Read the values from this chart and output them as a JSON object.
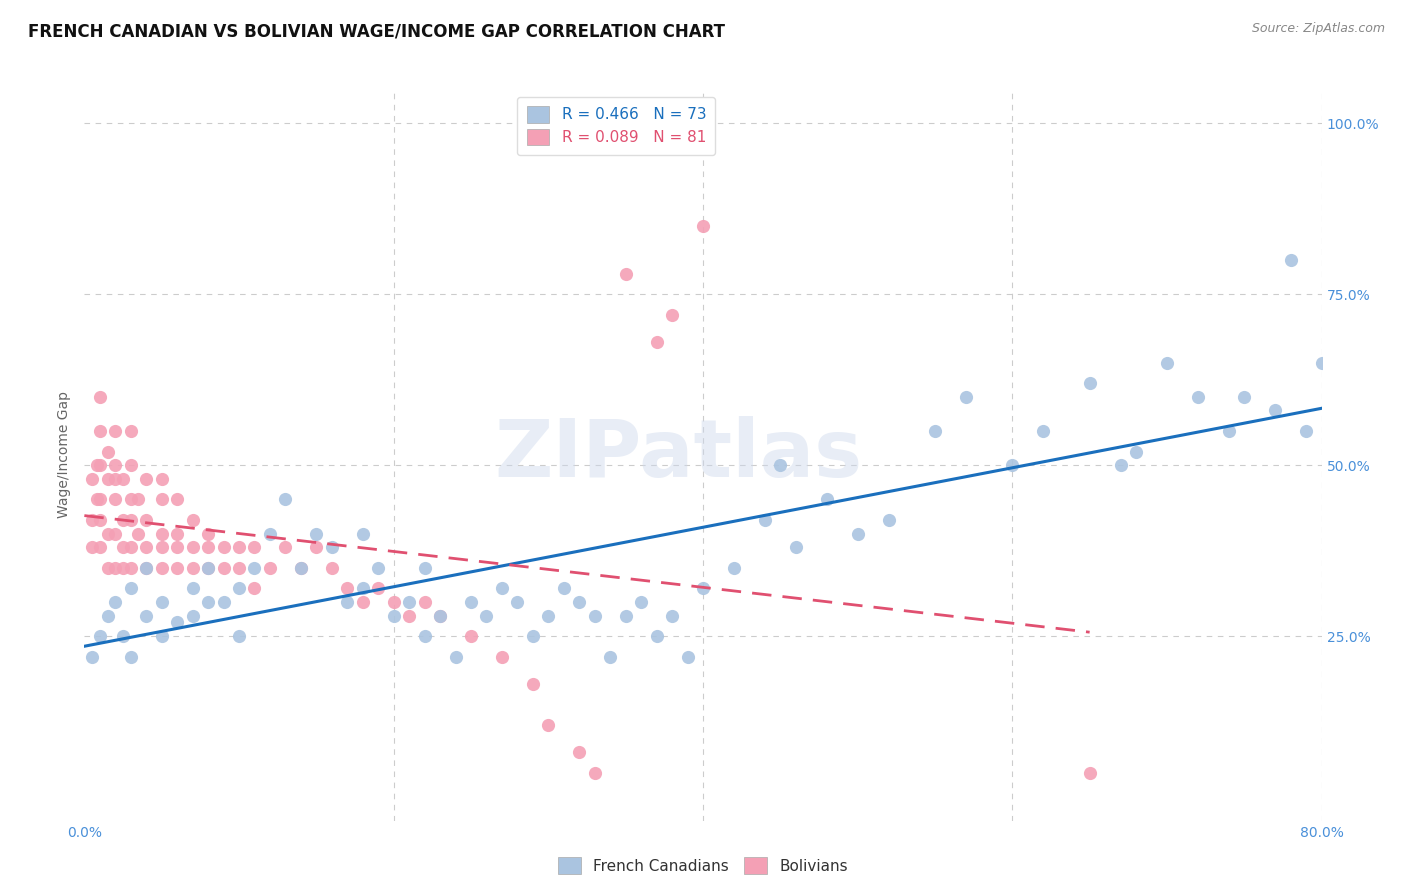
{
  "title": "FRENCH CANADIAN VS BOLIVIAN WAGE/INCOME GAP CORRELATION CHART",
  "source": "Source: ZipAtlas.com",
  "ylabel": "Wage/Income Gap",
  "xlim": [
    0.0,
    0.8
  ],
  "ylim": [
    -0.02,
    1.05
  ],
  "background_color": "#ffffff",
  "grid_color": "#cccccc",
  "french_canadian_color": "#aac4e0",
  "bolivian_color": "#f4a0b5",
  "french_canadian_line_color": "#1a6fbd",
  "bolivian_line_color": "#e05070",
  "tick_color": "#4a90d9",
  "legend_fc_label": "R = 0.466   N = 73",
  "legend_bo_label": "R = 0.089   N = 81",
  "legend_bottom_fc": "French Canadians",
  "legend_bottom_bo": "Bolivians",
  "watermark_text": "ZIPatlas",
  "title_fontsize": 12,
  "axis_label_fontsize": 10,
  "tick_fontsize": 10,
  "legend_fontsize": 11,
  "fc_x": [
    0.005,
    0.01,
    0.015,
    0.02,
    0.025,
    0.03,
    0.03,
    0.04,
    0.04,
    0.05,
    0.05,
    0.06,
    0.07,
    0.07,
    0.08,
    0.08,
    0.09,
    0.1,
    0.1,
    0.11,
    0.12,
    0.13,
    0.14,
    0.15,
    0.16,
    0.17,
    0.18,
    0.18,
    0.19,
    0.2,
    0.21,
    0.22,
    0.22,
    0.23,
    0.24,
    0.25,
    0.26,
    0.27,
    0.28,
    0.29,
    0.3,
    0.31,
    0.32,
    0.33,
    0.34,
    0.35,
    0.36,
    0.37,
    0.38,
    0.39,
    0.4,
    0.42,
    0.44,
    0.45,
    0.46,
    0.48,
    0.5,
    0.52,
    0.55,
    0.57,
    0.6,
    0.62,
    0.65,
    0.67,
    0.68,
    0.7,
    0.72,
    0.74,
    0.75,
    0.77,
    0.78,
    0.79,
    0.8
  ],
  "fc_y": [
    0.22,
    0.25,
    0.28,
    0.3,
    0.25,
    0.22,
    0.32,
    0.28,
    0.35,
    0.3,
    0.25,
    0.27,
    0.32,
    0.28,
    0.3,
    0.35,
    0.3,
    0.25,
    0.32,
    0.35,
    0.4,
    0.45,
    0.35,
    0.4,
    0.38,
    0.3,
    0.32,
    0.4,
    0.35,
    0.28,
    0.3,
    0.35,
    0.25,
    0.28,
    0.22,
    0.3,
    0.28,
    0.32,
    0.3,
    0.25,
    0.28,
    0.32,
    0.3,
    0.28,
    0.22,
    0.28,
    0.3,
    0.25,
    0.28,
    0.22,
    0.32,
    0.35,
    0.42,
    0.5,
    0.38,
    0.45,
    0.4,
    0.42,
    0.55,
    0.6,
    0.5,
    0.55,
    0.62,
    0.5,
    0.52,
    0.65,
    0.6,
    0.55,
    0.6,
    0.58,
    0.8,
    0.55,
    0.65
  ],
  "bo_x": [
    0.005,
    0.005,
    0.005,
    0.008,
    0.008,
    0.01,
    0.01,
    0.01,
    0.01,
    0.01,
    0.01,
    0.015,
    0.015,
    0.015,
    0.015,
    0.02,
    0.02,
    0.02,
    0.02,
    0.02,
    0.02,
    0.025,
    0.025,
    0.025,
    0.025,
    0.03,
    0.03,
    0.03,
    0.03,
    0.03,
    0.03,
    0.035,
    0.035,
    0.04,
    0.04,
    0.04,
    0.04,
    0.05,
    0.05,
    0.05,
    0.05,
    0.05,
    0.06,
    0.06,
    0.06,
    0.06,
    0.07,
    0.07,
    0.07,
    0.08,
    0.08,
    0.08,
    0.09,
    0.09,
    0.1,
    0.1,
    0.11,
    0.11,
    0.12,
    0.13,
    0.14,
    0.15,
    0.16,
    0.17,
    0.18,
    0.19,
    0.2,
    0.21,
    0.22,
    0.23,
    0.25,
    0.27,
    0.29,
    0.3,
    0.32,
    0.33,
    0.35,
    0.37,
    0.38,
    0.4,
    0.65
  ],
  "bo_y": [
    0.38,
    0.42,
    0.48,
    0.5,
    0.45,
    0.55,
    0.6,
    0.45,
    0.5,
    0.38,
    0.42,
    0.52,
    0.48,
    0.4,
    0.35,
    0.5,
    0.45,
    0.4,
    0.55,
    0.48,
    0.35,
    0.42,
    0.48,
    0.38,
    0.35,
    0.55,
    0.5,
    0.42,
    0.45,
    0.38,
    0.35,
    0.45,
    0.4,
    0.48,
    0.42,
    0.38,
    0.35,
    0.45,
    0.4,
    0.48,
    0.38,
    0.35,
    0.45,
    0.4,
    0.38,
    0.35,
    0.42,
    0.38,
    0.35,
    0.4,
    0.38,
    0.35,
    0.38,
    0.35,
    0.38,
    0.35,
    0.38,
    0.32,
    0.35,
    0.38,
    0.35,
    0.38,
    0.35,
    0.32,
    0.3,
    0.32,
    0.3,
    0.28,
    0.3,
    0.28,
    0.25,
    0.22,
    0.18,
    0.12,
    0.08,
    0.05,
    0.78,
    0.68,
    0.72,
    0.85,
    0.05
  ]
}
